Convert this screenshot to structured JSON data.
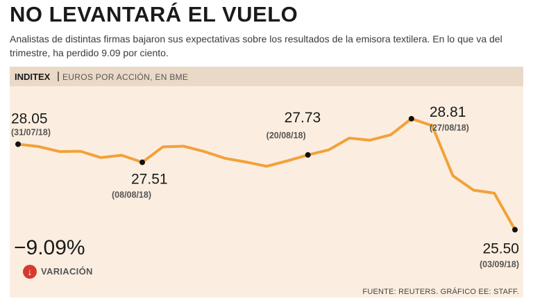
{
  "title": "NO LEVANTARÁ EL VUELO",
  "subtitle": "Analistas de distintas firmas bajaron sus expectativas sobre los resultados de la emisora textilera. En lo que va del trimestre, ha perdido 9.09 por ciento.",
  "header": {
    "company": "INDITEX",
    "separator": "|",
    "units": "EUROS POR ACCIÓN, EN BME"
  },
  "variation": {
    "value": "−9.09%",
    "label": "VARIACIÓN",
    "icon": "down-arrow-icon"
  },
  "source": "FUENTE: REUTERS. GRÁFICO EE: STAFF.",
  "colors": {
    "line": "#f2a13a",
    "panel": "#fbeee0",
    "band": "#ead9c6",
    "variation": "#d63a2f"
  },
  "chart_data": {
    "type": "line",
    "series_name": "Inditex",
    "values": [
      28.05,
      27.98,
      27.83,
      27.84,
      27.65,
      27.72,
      27.51,
      27.97,
      27.99,
      27.83,
      27.63,
      27.52,
      27.39,
      27.55,
      27.73,
      27.88,
      28.23,
      28.17,
      28.33,
      28.81,
      28.6,
      27.11,
      26.68,
      26.59,
      25.5
    ],
    "ylim": [
      25.2,
      29.2
    ],
    "annotations": [
      {
        "index": 0,
        "value": "28.05",
        "date": "(31/07/18)"
      },
      {
        "index": 6,
        "value": "27.51",
        "date": "(08/08/18)"
      },
      {
        "index": 14,
        "value": "27.73",
        "date": "(20/08/18)"
      },
      {
        "index": 19,
        "value": "28.81",
        "date": "(27/08/18)"
      },
      {
        "index": 24,
        "value": "25.50",
        "date": "(03/09/18)"
      }
    ]
  }
}
